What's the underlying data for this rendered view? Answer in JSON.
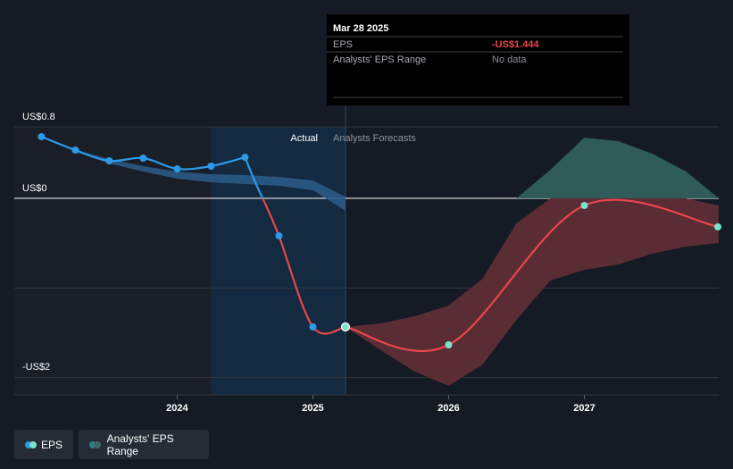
{
  "tooltip": {
    "date": "Mar 28 2025",
    "rows": [
      {
        "label": "EPS",
        "value": "-US$1.444"
      },
      {
        "label": "Analysts' EPS Range",
        "value": "No data"
      }
    ]
  },
  "section_labels": {
    "actual": "Actual",
    "forecast": "Analysts Forecasts"
  },
  "legend": {
    "eps": "EPS",
    "range": "Analysts' EPS Range"
  },
  "colors": {
    "background": "#151b24",
    "actual_shade": "#142a40",
    "eps_actual": "#2d9ae8",
    "eps_forecast": "#e8474c",
    "forecast_point": "#7de3c8",
    "range_positive": "#2f5b58",
    "range_negative": "#5a2c34",
    "tooltip_bg": "#000000",
    "negative_value": "#e8474c",
    "muted_text": "#8d939b"
  },
  "chart_data": {
    "type": "line",
    "y_ticks": [
      {
        "value": 0.8,
        "label": "US$0.8"
      },
      {
        "value": 0,
        "label": "US$0"
      },
      {
        "value": -2,
        "label": "-US$2"
      }
    ],
    "x_ticks": [
      {
        "value": 2024,
        "label": "2024"
      },
      {
        "value": 2025,
        "label": "2025"
      },
      {
        "value": 2026,
        "label": "2026"
      },
      {
        "value": 2027,
        "label": "2027"
      }
    ],
    "xlim": [
      2022.8,
      2027.99
    ],
    "ylim": [
      -2.2,
      0.8
    ],
    "actual_shade_start": 2024.25,
    "forecast_start": 2025.24,
    "series": [
      {
        "name": "EPS",
        "segment": "actual",
        "x": [
          2023.0,
          2023.25,
          2023.5,
          2023.75,
          2024.0,
          2024.25,
          2024.5,
          2024.75,
          2025.0,
          2025.24
        ],
        "y": [
          0.69,
          0.54,
          0.42,
          0.45,
          0.33,
          0.36,
          0.46,
          -0.42,
          -1.44,
          -1.44
        ],
        "markers": [
          true,
          true,
          true,
          true,
          true,
          true,
          true,
          true,
          false,
          true
        ]
      },
      {
        "name": "EPS",
        "segment": "forecast",
        "x": [
          2025.24,
          2026.0,
          2027.0,
          2027.99
        ],
        "y": [
          -1.44,
          -1.64,
          -0.08,
          -0.32
        ],
        "markers": [
          true,
          true,
          true,
          true
        ]
      }
    ],
    "actual_band": {
      "x": [
        2023.25,
        2023.5,
        2023.75,
        2024.0,
        2024.25,
        2024.5,
        2024.75,
        2025.0,
        2025.24
      ],
      "upper": [
        0.54,
        0.44,
        0.36,
        0.3,
        0.27,
        0.26,
        0.24,
        0.2,
        0.02
      ],
      "lower": [
        0.52,
        0.39,
        0.3,
        0.22,
        0.18,
        0.16,
        0.14,
        0.09,
        -0.14
      ]
    },
    "range_band": {
      "x": [
        2025.24,
        2025.5,
        2025.75,
        2026.0,
        2026.25,
        2026.5,
        2026.75,
        2027.0,
        2027.25,
        2027.5,
        2027.75,
        2027.99
      ],
      "upper": [
        -1.44,
        -1.4,
        -1.32,
        -1.2,
        -0.9,
        -0.28,
        0.32,
        0.68,
        0.64,
        0.5,
        0.3,
        -0.08
      ],
      "lower": [
        -1.44,
        -1.7,
        -1.94,
        -2.1,
        -1.86,
        -1.36,
        -0.92,
        -0.8,
        -0.74,
        -0.62,
        -0.54,
        -0.5
      ]
    },
    "hover_x": 2025.24
  }
}
